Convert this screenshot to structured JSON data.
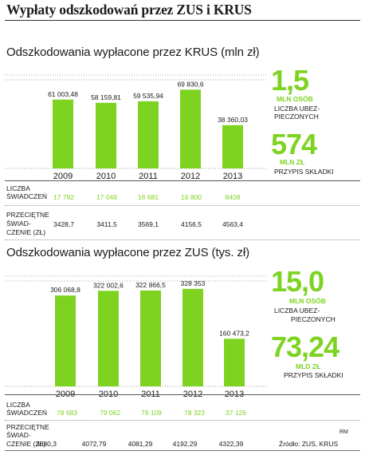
{
  "page_title": "Wypłaty odszkodowań przez ZUS i KRUS",
  "colors": {
    "bar": "#7ed321",
    "accent": "#7ed321",
    "text": "#1a1a1a"
  },
  "chart_data": [
    {
      "type": "bar",
      "title": "Odszkodowania wypłacone przez KRUS (mln zł)",
      "categories": [
        "2009",
        "2010",
        "2011",
        "2012",
        "2013"
      ],
      "values": [
        61003.48,
        58159.81,
        59535.94,
        69830.6,
        38360.03
      ],
      "data_labels": [
        "61 003,48",
        "58 159,81",
        "59 535,94",
        "69 830,6",
        "38 360,03"
      ],
      "ylim": [
        0,
        75000
      ],
      "grid": false
    },
    {
      "type": "bar",
      "title": "Odszkodowania wypłacone przez ZUS (tys. zł)",
      "categories": [
        "2009",
        "2010",
        "2011",
        "2012",
        "2013"
      ],
      "values": [
        306068.8,
        322002.6,
        322866.5,
        328353,
        160473.2
      ],
      "data_labels": [
        "306 068,8",
        "322 002,6",
        "322 866,5",
        "328 353",
        "160 473,2"
      ],
      "ylim": [
        0,
        355000
      ],
      "grid": false
    }
  ],
  "krus": {
    "stat1": {
      "value": "1,5",
      "unit": "MLN OSÓB",
      "caption_l1": "LICZBA UBEZ-",
      "caption_l2": "PIECZONYCH"
    },
    "stat2": {
      "value": "574",
      "unit": "MLN ZŁ",
      "caption_l1": "PRZYPIS SKŁADKI"
    },
    "table": {
      "row1_label_l1": "LICZBA",
      "row1_label_l2": "ŚWIADCZEŃ",
      "row1_values": [
        "17 792",
        "17 048",
        "16 681",
        "16 800",
        "8408"
      ],
      "row2_label_l1": "PRZECIĘTNE",
      "row2_label_l2": "ŚWIAD-",
      "row2_label_l3": "CZENIE (ZŁ)",
      "row2_values": [
        "3428,7",
        "3411,5",
        "3569,1",
        "4156,5",
        "4563,4"
      ]
    }
  },
  "zus": {
    "stat1": {
      "value": "15,0",
      "unit": "MLN OSÓB",
      "caption_l1": "LICZBA UBEZ-",
      "caption_l2": "PIECZONYCH"
    },
    "stat2": {
      "value": "73,24",
      "unit": "MLD ZŁ",
      "caption_l1": "PRZYPIS SKŁADKI"
    },
    "table": {
      "row1_label_l1": "LICZBA",
      "row1_label_l2": "ŚWIADCZEŃ",
      "row1_values": [
        "78 683",
        "79 062",
        "79 109",
        "78 323",
        "37 126"
      ],
      "row2_label_l1": "PRZECIĘTNE",
      "row2_label_l2": "ŚWIAD-",
      "row2_label_l3": "CZENIE (ZŁ)",
      "row2_values": [
        "3880,3",
        "4072,79",
        "4081,29",
        "4192,29",
        "4322,39"
      ]
    }
  },
  "footer": {
    "author": "RM",
    "source": "Źródło: ZUS, KRUS"
  }
}
